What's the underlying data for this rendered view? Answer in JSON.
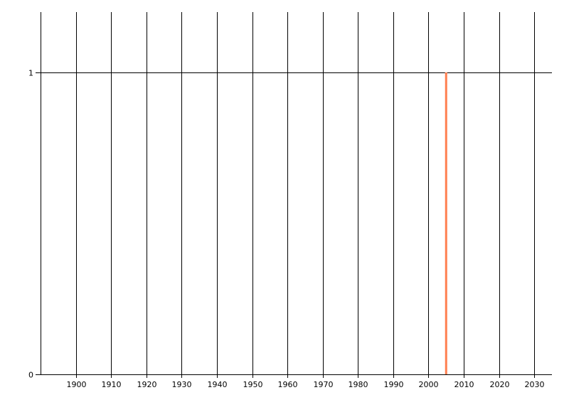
{
  "chart_data": {
    "type": "bar",
    "title": "",
    "xlabel": "",
    "ylabel": "",
    "xlim": [
      1890,
      2035
    ],
    "ylim": [
      0,
      1.2
    ],
    "x_ticks": [
      1900,
      1910,
      1920,
      1930,
      1940,
      1950,
      1960,
      1970,
      1980,
      1990,
      2000,
      2010,
      2020,
      2030
    ],
    "x_tick_labels": [
      "1900",
      "1910",
      "1920",
      "1930",
      "1940",
      "1950",
      "1960",
      "1970",
      "1980",
      "1990",
      "2000",
      "2010",
      "2020",
      "2030"
    ],
    "y_ticks": [
      0,
      1
    ],
    "y_tick_labels": [
      "0",
      "1"
    ],
    "grid": true,
    "x": [
      2005
    ],
    "values": [
      1
    ],
    "bar_color": "#FF7F50",
    "grid_color": "#000000"
  }
}
